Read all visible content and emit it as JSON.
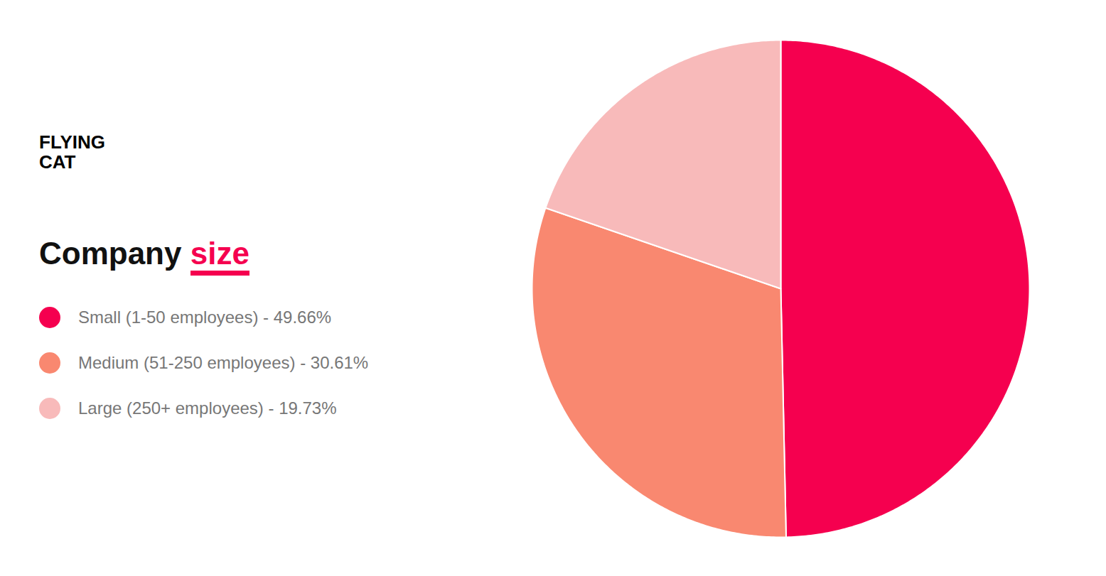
{
  "chart_data": {
    "type": "pie",
    "title": "Company size",
    "annotations": [
      "FLYING\nCAT"
    ],
    "categories": [
      "Small (1-50 employees) - 49.66%",
      "Medium (51-250 employees) - 30.61%",
      "Large (250+ employees) - 19.73%"
    ],
    "values": [
      49.66,
      30.61,
      19.73
    ],
    "colors": [
      "#F5004F",
      "#F98870",
      "#F8BABA"
    ],
    "legend": "left"
  }
}
